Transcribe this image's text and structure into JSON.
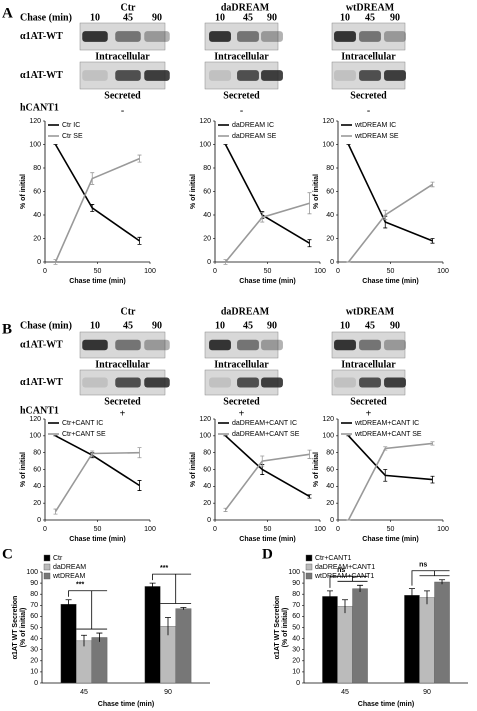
{
  "figure": {
    "panels": [
      {
        "letter": "A",
        "chase_label": "Chase (min)",
        "protein_labels": [
          "α1AT-WT",
          "α1AT-WT"
        ],
        "cant_label": "hCANT1",
        "columns": [
          {
            "title": "Ctr",
            "times": [
              10,
              45,
              90
            ],
            "rows": [
              "Intracellular",
              "Secreted"
            ],
            "cant": "-"
          },
          {
            "title": "daDREAM",
            "times": [
              10,
              45,
              90
            ],
            "rows": [
              "Intracellular",
              "Secreted"
            ],
            "cant": "-"
          },
          {
            "title": "wtDREAM",
            "times": [
              10,
              45,
              90
            ],
            "rows": [
              "Intracellular",
              "Secreted"
            ],
            "cant": "-"
          }
        ]
      },
      {
        "letter": "B",
        "chase_label": "Chase (min)",
        "protein_labels": [
          "α1AT-WT",
          "α1AT-WT"
        ],
        "cant_label": "hCANT1",
        "columns": [
          {
            "title": "Ctr",
            "times": [
              10,
              45,
              90
            ],
            "rows": [
              "Intracellular",
              "Secreted"
            ],
            "cant": "+"
          },
          {
            "title": "daDREAM",
            "times": [
              10,
              45,
              90
            ],
            "rows": [
              "Intracellular",
              "Secreted"
            ],
            "cant": "+"
          },
          {
            "title": "wtDREAM",
            "times": [
              10,
              45,
              90
            ],
            "rows": [
              "Intracellular",
              "Secreted"
            ],
            "cant": "+"
          }
        ]
      },
      {
        "letter": "C"
      },
      {
        "letter": "D"
      }
    ]
  },
  "chart_data": [
    {
      "type": "line",
      "x": [
        10,
        45,
        90
      ],
      "xlim": [
        0,
        100
      ],
      "xticks": [
        0,
        50,
        100
      ],
      "ylim": [
        0,
        120
      ],
      "yticks": [
        0,
        20,
        40,
        60,
        80,
        100,
        120
      ],
      "xlabel": "Chase time (min)",
      "ylabel": "% of initial",
      "legend": "upper left",
      "series": [
        {
          "name": "Ctr IC",
          "color": "#000000",
          "values": [
            100,
            46,
            18
          ],
          "errors": [
            0,
            3,
            3
          ]
        },
        {
          "name": "Ctr SE",
          "color": "#999999",
          "values": [
            0,
            71,
            88
          ],
          "errors": [
            2,
            5,
            3
          ]
        }
      ]
    },
    {
      "type": "line",
      "x": [
        10,
        45,
        90
      ],
      "xlim": [
        0,
        100
      ],
      "xticks": [
        0,
        50,
        100
      ],
      "ylim": [
        0,
        120
      ],
      "yticks": [
        0,
        20,
        40,
        60,
        80,
        100,
        120
      ],
      "xlabel": "Chase time (min)",
      "ylabel": "% of initial",
      "legend": "upper left",
      "series": [
        {
          "name": "daDREAM IC",
          "color": "#000000",
          "values": [
            100,
            40,
            16
          ],
          "errors": [
            0,
            3,
            3
          ]
        },
        {
          "name": "daDREAM SE",
          "color": "#999999",
          "values": [
            0,
            38,
            50
          ],
          "errors": [
            2,
            4,
            9
          ]
        }
      ]
    },
    {
      "type": "line",
      "x": [
        10,
        45,
        90
      ],
      "xlim": [
        0,
        100
      ],
      "xticks": [
        0,
        50,
        100
      ],
      "ylim": [
        0,
        120
      ],
      "yticks": [
        0,
        20,
        40,
        60,
        80,
        100,
        120
      ],
      "xlabel": "Chase time (min)",
      "ylabel": "% of initial",
      "legend": "upper left",
      "series": [
        {
          "name": "wtDREAM IC",
          "color": "#000000",
          "values": [
            100,
            34,
            18
          ],
          "errors": [
            0,
            5,
            2
          ]
        },
        {
          "name": "wtDREAM SE",
          "color": "#999999",
          "values": [
            0,
            40,
            66
          ],
          "errors": [
            0,
            4,
            2
          ]
        }
      ]
    },
    {
      "type": "line",
      "x": [
        10,
        45,
        90
      ],
      "xlim": [
        0,
        100
      ],
      "xticks": [
        0,
        50,
        100
      ],
      "ylim": [
        0,
        120
      ],
      "yticks": [
        0,
        20,
        40,
        60,
        80,
        100,
        120
      ],
      "xlabel": "Chase time (min)",
      "ylabel": "% of initial",
      "legend": "upper left",
      "series": [
        {
          "name": "Ctr+CANT IC",
          "color": "#000000",
          "values": [
            100,
            77,
            41
          ],
          "errors": [
            0,
            3,
            6
          ]
        },
        {
          "name": "Ctr+CANT SE",
          "color": "#999999",
          "values": [
            10,
            79,
            80
          ],
          "errors": [
            3,
            3,
            6
          ]
        }
      ]
    },
    {
      "type": "line",
      "x": [
        10,
        45,
        90
      ],
      "xlim": [
        0,
        100
      ],
      "xticks": [
        0,
        50,
        100
      ],
      "ylim": [
        0,
        120
      ],
      "yticks": [
        0,
        20,
        40,
        60,
        80,
        100,
        120
      ],
      "xlabel": "Chase time (min)",
      "ylabel": "% of initial",
      "legend": "upper left",
      "series": [
        {
          "name": "daDREAM+CANT IC",
          "color": "#000000",
          "values": [
            100,
            60,
            28
          ],
          "errors": [
            0,
            6,
            2
          ]
        },
        {
          "name": "daDREAM+CANT SE",
          "color": "#999999",
          "values": [
            12,
            70,
            78
          ],
          "errors": [
            2,
            6,
            5
          ]
        }
      ]
    },
    {
      "type": "line",
      "x": [
        10,
        45,
        90
      ],
      "xlim": [
        0,
        100
      ],
      "xticks": [
        0,
        50,
        100
      ],
      "ylim": [
        0,
        120
      ],
      "yticks": [
        0,
        20,
        40,
        60,
        80,
        100,
        120
      ],
      "xlabel": "Chase time (min)",
      "ylabel": "% of initial",
      "legend": "upper left",
      "series": [
        {
          "name": "wtDREAM+CANT IC",
          "color": "#000000",
          "values": [
            100,
            53,
            48
          ],
          "errors": [
            0,
            7,
            4
          ]
        },
        {
          "name": "wtDREAM+CANT SE",
          "color": "#999999",
          "values": [
            0,
            85,
            91
          ],
          "errors": [
            0,
            2,
            2
          ]
        }
      ]
    },
    {
      "type": "bar",
      "categories": [
        "45",
        "90"
      ],
      "ylim": [
        0,
        100
      ],
      "yticks": [
        0,
        10,
        20,
        30,
        40,
        50,
        60,
        70,
        80,
        90,
        100
      ],
      "xlabel": "Chase time (min)",
      "ylabel": [
        "α1AT WT Secretion",
        "(% of initial)"
      ],
      "legend": "upper left",
      "annotations": [
        "***",
        "***"
      ],
      "series": [
        {
          "name": "Ctr",
          "color": "#000000",
          "values": [
            71,
            87
          ],
          "errors": [
            4,
            3
          ]
        },
        {
          "name": "daDREAM",
          "color": "#bbbbbb",
          "values": [
            38,
            51
          ],
          "errors": [
            5,
            8
          ]
        },
        {
          "name": "wtDREAM",
          "color": "#777777",
          "values": [
            41,
            67
          ],
          "errors": [
            4,
            1
          ]
        }
      ]
    },
    {
      "type": "bar",
      "categories": [
        "45",
        "90"
      ],
      "ylim": [
        0,
        100
      ],
      "yticks": [
        0,
        10,
        20,
        30,
        40,
        50,
        60,
        70,
        80,
        90,
        100
      ],
      "xlabel": "Chase time (min)",
      "ylabel": [
        "α1AT WT Secretion",
        "(% of initial)"
      ],
      "legend": "upper left",
      "annotations": [
        "ns",
        "ns"
      ],
      "series": [
        {
          "name": "Ctr+CANT1",
          "color": "#000000",
          "values": [
            78,
            79
          ],
          "errors": [
            5,
            6
          ]
        },
        {
          "name": "daDREAM+CANT1",
          "color": "#bbbbbb",
          "values": [
            69,
            77
          ],
          "errors": [
            6,
            6
          ]
        },
        {
          "name": "wtDREAM+CANT1",
          "color": "#777777",
          "values": [
            85,
            91
          ],
          "errors": [
            3,
            2
          ]
        }
      ]
    }
  ]
}
